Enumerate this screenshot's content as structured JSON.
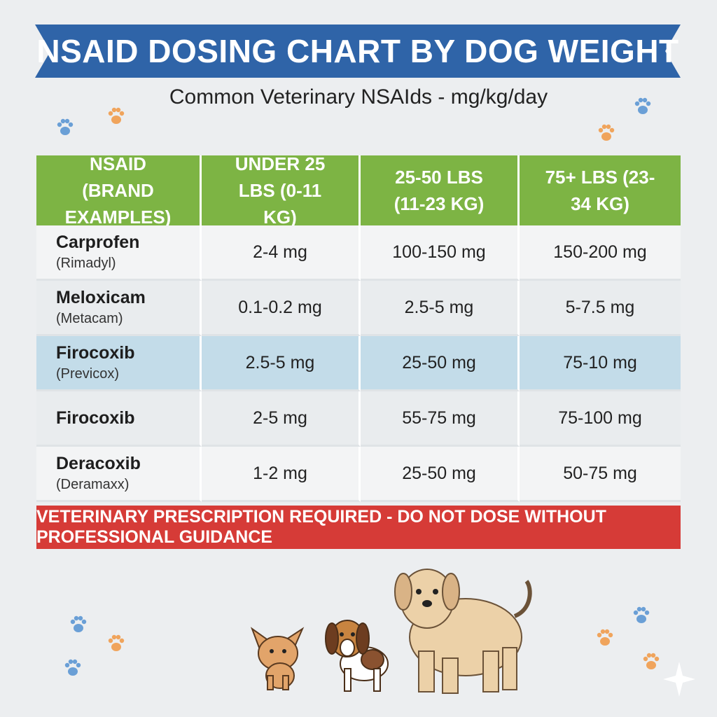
{
  "header": {
    "title": "NSAID DOSING CHART BY DOG WEIGHT",
    "subtitle": "Common Veterinary NSAIds - mg/kg/day"
  },
  "table": {
    "headers": [
      "NSAID (BRAND EXAMPLES)",
      "UNDER 25 LBS (0-11 KG)",
      "25-50 LBS (11-23 KG)",
      "75+ LBS (23-34 KG)"
    ],
    "highlighted_row": 2,
    "rows": [
      {
        "name": "Carprofen",
        "brand": "(Rimadyl)",
        "cells": [
          "2-4 mg",
          "100-150 mg",
          "150-200 mg"
        ]
      },
      {
        "name": "Meloxicam",
        "brand": "(Metacam)",
        "cells": [
          "0.1-0.2 mg",
          "2.5-5 mg",
          "5-7.5 mg"
        ]
      },
      {
        "name": "Firocoxib",
        "brand": "(Previcox)",
        "cells": [
          "2.5-5 mg",
          "25-50 mg",
          "75-10 mg"
        ]
      },
      {
        "name": "Firocoxib",
        "cells": [
          "2-5 mg",
          "55-75 mg",
          "75-100 mg"
        ]
      },
      {
        "name": "Deracoxib",
        "brand": "(Deramaxx)",
        "cells": [
          "1-2 mg",
          "25-50 mg",
          "50-75 mg"
        ]
      }
    ]
  },
  "footer": {
    "warning": "VETERINARY PRESCRIPTION REQUIRED - DO NOT DOSE WITHOUT PROFESSIONAL GUIDANCE"
  }
}
